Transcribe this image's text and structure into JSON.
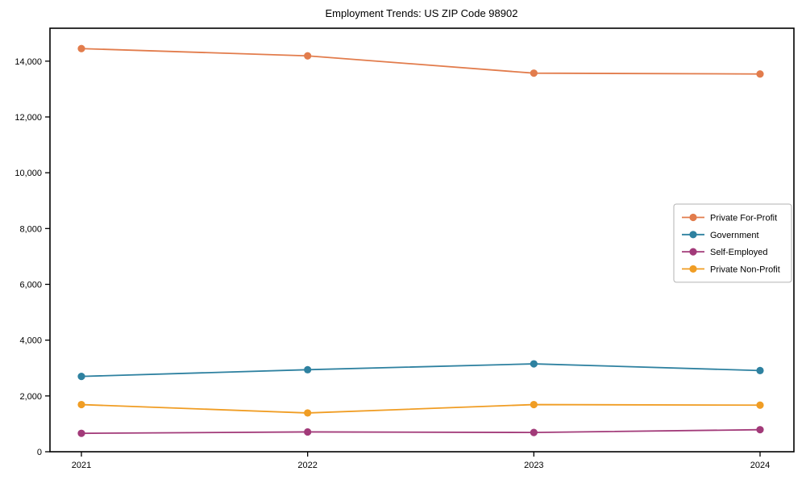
{
  "chart_data": {
    "type": "line",
    "title": "Employment Trends: US ZIP Code 98902",
    "xlabel": "",
    "ylabel": "",
    "categories": [
      "2021",
      "2022",
      "2023",
      "2024"
    ],
    "series": [
      {
        "name": "Private For-Profit",
        "color": "#e27c4c",
        "values": [
          14450,
          14190,
          13570,
          13540
        ]
      },
      {
        "name": "Government",
        "color": "#2e81a0",
        "values": [
          2700,
          2940,
          3150,
          2910
        ]
      },
      {
        "name": "Self-Employed",
        "color": "#a23a79",
        "values": [
          660,
          710,
          690,
          790
        ]
      },
      {
        "name": "Private Non-Profit",
        "color": "#f09d24",
        "values": [
          1690,
          1390,
          1690,
          1670
        ]
      }
    ],
    "ylim": [
      0,
      15180
    ],
    "yticks": [
      0,
      2000,
      4000,
      6000,
      8000,
      10000,
      12000,
      14000
    ],
    "grid": false,
    "legend_position": "center-right",
    "marker": "circle",
    "axis_color": "#000000",
    "legend_border_color": "#b3b3b3",
    "legend_background": "#ffffff"
  }
}
